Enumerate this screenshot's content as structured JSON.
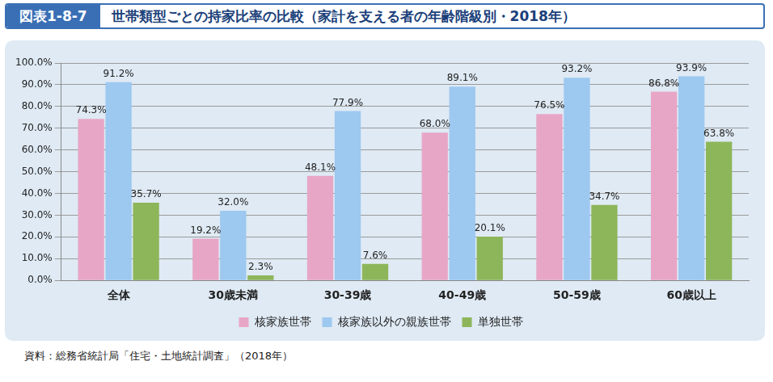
{
  "chart_data": {
    "type": "bar",
    "figure_label": "図表1-8-7",
    "title": "世帯類型ごとの持家比率の比較（家計を支える者の年齢階級別・2018年）",
    "source": "資料：総務省統計局「住宅・土地統計調査」（2018年）",
    "categories": [
      "全体",
      "30歳未満",
      "30-39歳",
      "40-49歳",
      "50-59歳",
      "60歳以上"
    ],
    "series": [
      {
        "name": "核家族世帯",
        "color": "#e8a6c6",
        "values": [
          74.3,
          19.2,
          48.1,
          68.0,
          76.5,
          86.8
        ],
        "value_labels": [
          "74.3%",
          "19.2%",
          "48.1%",
          "68.0%",
          "76.5%",
          "86.8%"
        ]
      },
      {
        "name": "核家族以外の親族世帯",
        "color": "#9dc8f0",
        "values": [
          91.2,
          32.0,
          77.9,
          89.1,
          93.2,
          93.9
        ],
        "value_labels": [
          "91.2%",
          "32.0%",
          "77.9%",
          "89.1%",
          "93.2%",
          "93.9%"
        ]
      },
      {
        "name": "単独世帯",
        "color": "#8db65a",
        "values": [
          35.7,
          2.3,
          7.6,
          20.1,
          34.7,
          63.8
        ],
        "value_labels": [
          "35.7%",
          "2.3%",
          "7.6%",
          "20.1%",
          "34.7%",
          "63.8%"
        ]
      }
    ],
    "ylim": [
      0,
      100
    ],
    "yticks": [
      {
        "value": 0,
        "label": "0.0%"
      },
      {
        "value": 10,
        "label": "10.0%"
      },
      {
        "value": 20,
        "label": "20.0%"
      },
      {
        "value": 30,
        "label": "30.0%"
      },
      {
        "value": 40,
        "label": "40.0%"
      },
      {
        "value": 50,
        "label": "50.0%"
      },
      {
        "value": 60,
        "label": "60.0%"
      },
      {
        "value": 70,
        "label": "70.0%"
      },
      {
        "value": 80,
        "label": "80.0%"
      },
      {
        "value": 90,
        "label": "90.0%"
      },
      {
        "value": 100,
        "label": "100.0%"
      }
    ],
    "grid": true,
    "legend": "bottom",
    "data_labels": true
  }
}
